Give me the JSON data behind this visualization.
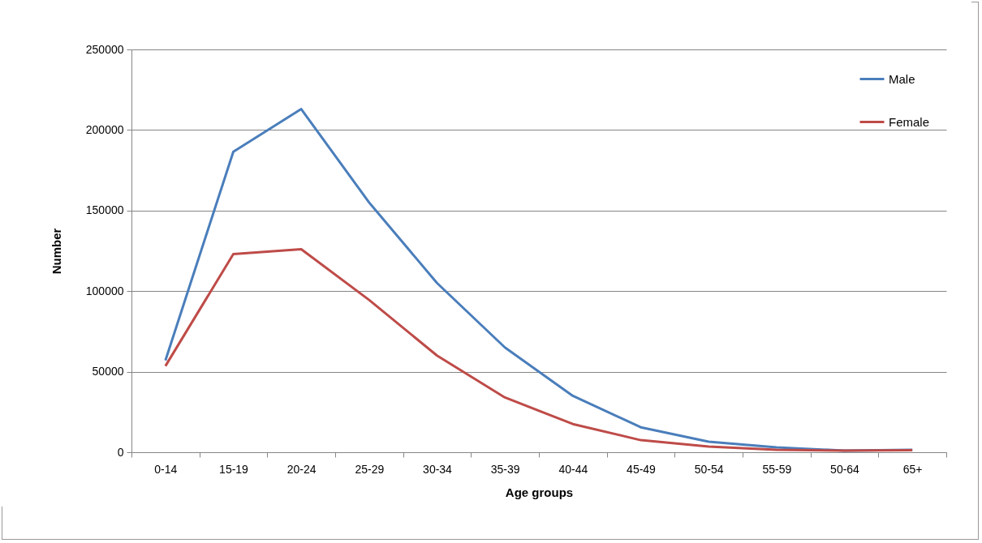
{
  "chart_data": {
    "type": "line",
    "xlabel": "Age groups",
    "ylabel": "Number",
    "categories": [
      "0-14",
      "15-19",
      "20-24",
      "25-29",
      "30-34",
      "35-39",
      "40-44",
      "45-49",
      "50-54",
      "55-59",
      "50-64",
      "65+"
    ],
    "series": [
      {
        "name": "Male",
        "color": "#4a7ebb",
        "values": [
          57000,
          186500,
          213000,
          155000,
          105000,
          65000,
          35000,
          15500,
          6500,
          3000,
          1000,
          1500
        ]
      },
      {
        "name": "Female",
        "color": "#be4b48",
        "values": [
          53500,
          123000,
          126000,
          94500,
          60000,
          34000,
          17500,
          7500,
          3500,
          1500,
          1000,
          1200
        ]
      }
    ],
    "ylim": [
      0,
      250000
    ],
    "yticks": [
      0,
      50000,
      100000,
      150000,
      200000,
      250000
    ],
    "grid": "y",
    "legend": "top right",
    "marker": "none",
    "line_style": "solid"
  }
}
